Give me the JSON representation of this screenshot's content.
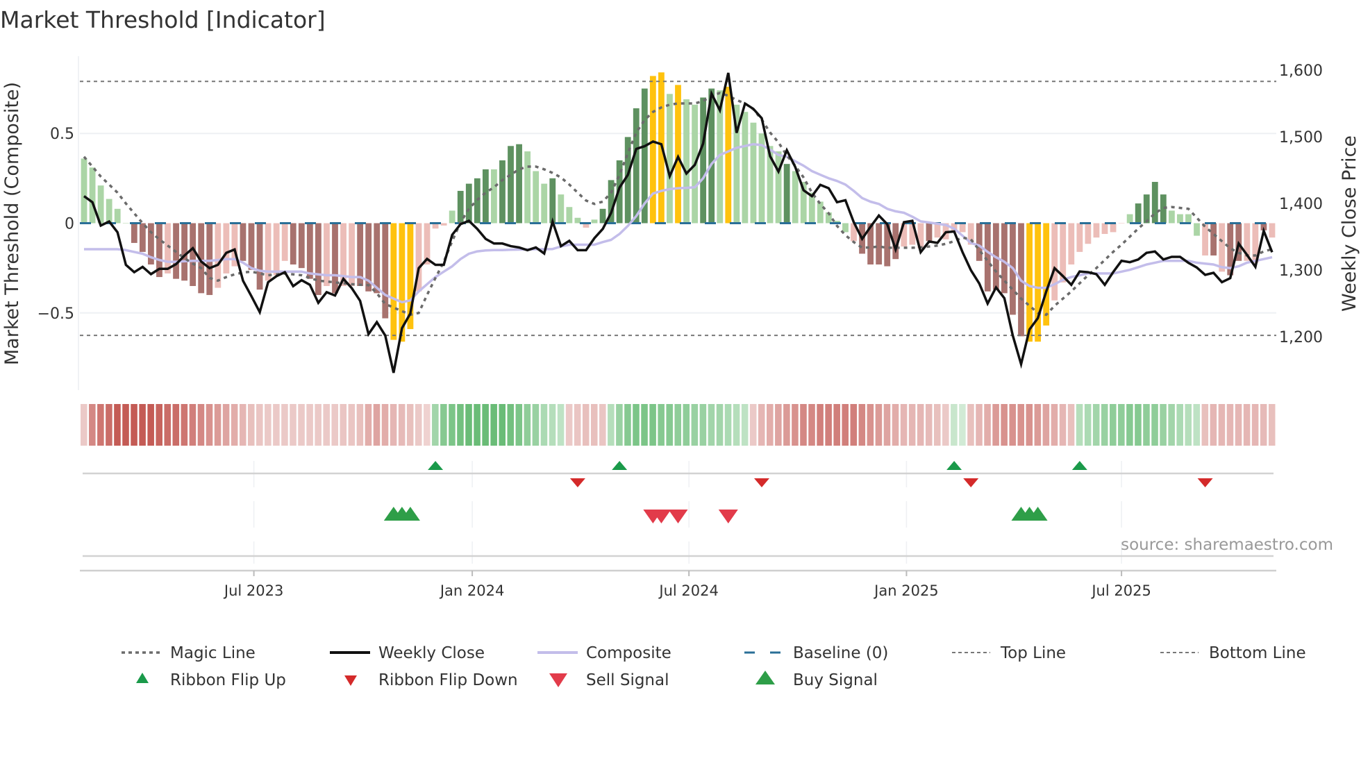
{
  "chart_data": {
    "type": "bar",
    "title": "Market Threshold [Indicator]",
    "ylabel": "Market Threshold (Composite)",
    "y2label": "Weekly Close Price",
    "xlabel": "",
    "ylim": [
      -0.93,
      0.93
    ],
    "y2lim": [
      1120,
      1621
    ],
    "yticks": [
      {
        "value": 0.5,
        "label": "0.5"
      },
      {
        "value": 0,
        "label": "0"
      },
      {
        "value": -0.5,
        "label": "−0.5"
      }
    ],
    "y2ticks": [
      {
        "value": 1600,
        "label": "1,600"
      },
      {
        "value": 1500,
        "label": "1,500"
      },
      {
        "value": 1400,
        "label": "1,400"
      },
      {
        "value": 1300,
        "label": "1,300"
      },
      {
        "value": 1200,
        "label": "1,200"
      }
    ],
    "xticks": [
      {
        "week": 20.8,
        "label": "Jul 2023"
      },
      {
        "week": 46.9,
        "label": "Jan 2024"
      },
      {
        "week": 72.8,
        "label": "Jul 2024"
      },
      {
        "week": 98.8,
        "label": "Jan 2025"
      },
      {
        "week": 124.5,
        "label": "Jul 2025"
      }
    ],
    "grid": true,
    "weeks": 143,
    "top_line": 0.79,
    "bottom_line": -0.625,
    "baseline": 0,
    "composite_bars": [
      0.36,
      0.31,
      0.21,
      0.135,
      0.08,
      0,
      -0.11,
      -0.16,
      -0.23,
      -0.3,
      -0.28,
      -0.31,
      -0.32,
      -0.35,
      -0.39,
      -0.4,
      -0.36,
      -0.28,
      -0.24,
      -0.21,
      -0.26,
      -0.37,
      -0.32,
      -0.29,
      -0.21,
      -0.23,
      -0.25,
      -0.31,
      -0.4,
      -0.35,
      -0.39,
      -0.35,
      -0.35,
      -0.35,
      -0.38,
      -0.39,
      -0.53,
      -0.65,
      -0.66,
      -0.59,
      -0.38,
      -0.23,
      -0.03,
      -0.013,
      0.07,
      0.18,
      0.22,
      0.25,
      0.3,
      0.3,
      0.35,
      0.43,
      0.44,
      0.4,
      0.29,
      0.22,
      0.25,
      0.16,
      0.09,
      0.03,
      -0.025,
      0.02,
      0.08,
      0.24,
      0.35,
      0.48,
      0.64,
      0.75,
      0.82,
      0.84,
      0.72,
      0.77,
      0.69,
      0.66,
      0.7,
      0.75,
      0.74,
      0.76,
      0.66,
      0.62,
      0.56,
      0.5,
      0.43,
      0.4,
      0.33,
      0.29,
      0.23,
      0.17,
      0.12,
      0.06,
      0.013,
      -0.05,
      -0.1,
      -0.17,
      -0.23,
      -0.23,
      -0.24,
      -0.2,
      -0.13,
      -0.12,
      -0.14,
      -0.1,
      -0.08,
      -0.09,
      -0.05,
      -0.05,
      -0.12,
      -0.21,
      -0.38,
      -0.37,
      -0.39,
      -0.51,
      -0.63,
      -0.66,
      -0.66,
      -0.57,
      -0.43,
      -0.33,
      -0.23,
      -0.16,
      -0.115,
      -0.08,
      -0.06,
      -0.05,
      0,
      0.05,
      0.11,
      0.16,
      0.23,
      0.16,
      0.07,
      0.05,
      0.05,
      -0.07,
      -0.18,
      -0.18,
      -0.27,
      -0.29,
      -0.21,
      -0.21,
      -0.22,
      -0.04,
      -0.08
    ],
    "bar_classes": "ggggggRRRRrRRRRRrrrRRRrrrRRRRrRrrRRRRYYYrrrrgGGGGgGGGgggGgggrgGGGGGGYYgYggGGgYggggggGgggggggrRRRRRrrrRrrrrrRRRRRRYYYrrrrrrrrrgGGGGggggrRrRRrrRrr",
    "bar_colors": {
      "G": "#5e9160",
      "g": "#abd5a6",
      "R": "#a8726e",
      "r": "#ecbdb8",
      "Y": "#ffc20e"
    },
    "weekly_close": [
      1411,
      1402,
      1367,
      1373,
      1357,
      1308,
      1297,
      1305,
      1294,
      1302,
      1302,
      1309,
      1322,
      1333,
      1313,
      1303,
      1308,
      1326,
      1331,
      1284,
      1261,
      1237,
      1282,
      1291,
      1297,
      1276,
      1285,
      1278,
      1251,
      1267,
      1262,
      1287,
      1273,
      1254,
      1204,
      1222,
      1202,
      1146,
      1213,
      1235,
      1303,
      1317,
      1308,
      1308,
      1353,
      1369,
      1374,
      1362,
      1347,
      1340,
      1340,
      1336,
      1334,
      1330,
      1334,
      1325,
      1373,
      1336,
      1344,
      1330,
      1330,
      1348,
      1362,
      1386,
      1424,
      1443,
      1482,
      1486,
      1493,
      1489,
      1441,
      1470,
      1445,
      1458,
      1490,
      1565,
      1540,
      1596,
      1506,
      1550,
      1542,
      1528,
      1471,
      1448,
      1480,
      1455,
      1420,
      1411,
      1428,
      1423,
      1402,
      1405,
      1372,
      1347,
      1365,
      1382,
      1369,
      1331,
      1372,
      1374,
      1327,
      1343,
      1341,
      1357,
      1358,
      1327,
      1300,
      1280,
      1250,
      1274,
      1258,
      1202,
      1159,
      1211,
      1228,
      1268,
      1303,
      1291,
      1278,
      1298,
      1297,
      1294,
      1278,
      1297,
      1314,
      1312,
      1316,
      1326,
      1328,
      1316,
      1320,
      1320,
      1311,
      1304,
      1293,
      1296,
      1282,
      1288,
      1340,
      1323,
      1305,
      1359,
      1327
    ],
    "magic_line": [
      0.37,
      0.315,
      0.26,
      0.215,
      0.17,
      0.11,
      0.055,
      0.0,
      -0.05,
      -0.09,
      -0.125,
      -0.16,
      -0.195,
      -0.225,
      -0.25,
      -0.305,
      -0.32,
      -0.3,
      -0.285,
      -0.275,
      -0.27,
      -0.28,
      -0.29,
      -0.285,
      -0.28,
      -0.285,
      -0.29,
      -0.305,
      -0.32,
      -0.325,
      -0.33,
      -0.335,
      -0.34,
      -0.343,
      -0.345,
      -0.39,
      -0.45,
      -0.47,
      -0.49,
      -0.51,
      -0.5,
      -0.4,
      -0.305,
      -0.215,
      -0.1,
      0.004,
      0.08,
      0.13,
      0.17,
      0.2,
      0.24,
      0.27,
      0.3,
      0.315,
      0.315,
      0.3,
      0.28,
      0.255,
      0.215,
      0.17,
      0.126,
      0.107,
      0.12,
      0.17,
      0.27,
      0.39,
      0.505,
      0.575,
      0.62,
      0.645,
      0.66,
      0.667,
      0.667,
      0.667,
      0.68,
      0.71,
      0.725,
      0.71,
      0.686,
      0.667,
      0.635,
      0.577,
      0.505,
      0.45,
      0.377,
      0.32,
      0.255,
      0.17,
      0.107,
      0.055,
      -0.015,
      -0.067,
      -0.105,
      -0.137,
      -0.135,
      -0.13,
      -0.137,
      -0.137,
      -0.137,
      -0.137,
      -0.135,
      -0.13,
      -0.125,
      -0.115,
      -0.1,
      -0.08,
      -0.09,
      -0.15,
      -0.21,
      -0.27,
      -0.32,
      -0.37,
      -0.42,
      -0.46,
      -0.5,
      -0.51,
      -0.46,
      -0.42,
      -0.38,
      -0.335,
      -0.29,
      -0.25,
      -0.205,
      -0.16,
      -0.12,
      -0.075,
      -0.03,
      0.01,
      0.055,
      0.085,
      0.09,
      0.085,
      0.08,
      0.03,
      -0.02,
      -0.06,
      -0.1,
      -0.14,
      -0.165,
      -0.18,
      -0.18,
      -0.157,
      -0.145
    ],
    "composite_line": [
      -0.145,
      -0.145,
      -0.145,
      -0.145,
      -0.145,
      -0.15,
      -0.16,
      -0.17,
      -0.19,
      -0.205,
      -0.215,
      -0.215,
      -0.212,
      -0.21,
      -0.21,
      -0.21,
      -0.205,
      -0.2,
      -0.2,
      -0.22,
      -0.25,
      -0.265,
      -0.27,
      -0.27,
      -0.27,
      -0.27,
      -0.27,
      -0.28,
      -0.285,
      -0.29,
      -0.29,
      -0.295,
      -0.3,
      -0.3,
      -0.32,
      -0.36,
      -0.4,
      -0.42,
      -0.44,
      -0.43,
      -0.38,
      -0.34,
      -0.3,
      -0.27,
      -0.24,
      -0.2,
      -0.17,
      -0.157,
      -0.152,
      -0.15,
      -0.15,
      -0.148,
      -0.147,
      -0.146,
      -0.145,
      -0.145,
      -0.144,
      -0.13,
      -0.12,
      -0.12,
      -0.12,
      -0.12,
      -0.105,
      -0.093,
      -0.06,
      -0.015,
      0.04,
      0.11,
      0.165,
      0.18,
      0.19,
      0.195,
      0.197,
      0.2,
      0.25,
      0.33,
      0.38,
      0.4,
      0.42,
      0.43,
      0.44,
      0.435,
      0.41,
      0.38,
      0.37,
      0.345,
      0.32,
      0.29,
      0.27,
      0.25,
      0.235,
      0.215,
      0.18,
      0.14,
      0.12,
      0.107,
      0.08,
      0.066,
      0.058,
      0.036,
      0.01,
      0.004,
      -0.003,
      -0.01,
      -0.03,
      -0.07,
      -0.11,
      -0.125,
      -0.16,
      -0.19,
      -0.215,
      -0.25,
      -0.32,
      -0.35,
      -0.36,
      -0.36,
      -0.34,
      -0.315,
      -0.3,
      -0.29,
      -0.28,
      -0.28,
      -0.28,
      -0.28,
      -0.27,
      -0.26,
      -0.245,
      -0.23,
      -0.22,
      -0.21,
      -0.21,
      -0.21,
      -0.21,
      -0.22,
      -0.225,
      -0.23,
      -0.245,
      -0.25,
      -0.24,
      -0.22,
      -0.21,
      -0.2,
      -0.19
    ],
    "ribbon": [
      -0.2,
      -0.55,
      -0.65,
      -0.7,
      -0.8,
      -0.8,
      -0.8,
      -0.8,
      -0.8,
      -0.75,
      -0.7,
      -0.7,
      -0.65,
      -0.6,
      -0.55,
      -0.5,
      -0.45,
      -0.4,
      -0.35,
      -0.3,
      -0.25,
      -0.22,
      -0.2,
      -0.2,
      -0.2,
      -0.2,
      -0.2,
      -0.2,
      -0.2,
      -0.2,
      -0.2,
      -0.22,
      -0.22,
      -0.25,
      -0.35,
      -0.4,
      -0.35,
      -0.3,
      -0.28,
      -0.25,
      -0.2,
      -0.15,
      0.4,
      0.55,
      0.6,
      0.65,
      0.7,
      0.7,
      0.7,
      0.7,
      0.7,
      0.65,
      0.6,
      0.5,
      0.45,
      0.35,
      0.3,
      0.25,
      -0.2,
      -0.22,
      -0.25,
      -0.25,
      -0.22,
      0.3,
      0.45,
      0.55,
      0.6,
      0.6,
      0.6,
      0.55,
      0.55,
      0.5,
      0.5,
      0.45,
      0.45,
      0.4,
      0.4,
      0.35,
      0.3,
      0.25,
      -0.2,
      -0.3,
      -0.35,
      -0.4,
      -0.45,
      -0.5,
      -0.55,
      -0.55,
      -0.6,
      -0.6,
      -0.6,
      -0.6,
      -0.6,
      -0.55,
      -0.5,
      -0.45,
      -0.4,
      -0.35,
      -0.3,
      -0.3,
      -0.3,
      -0.28,
      -0.25,
      -0.2,
      0.2,
      0.15,
      -0.25,
      -0.3,
      -0.35,
      -0.45,
      -0.5,
      -0.5,
      -0.5,
      -0.5,
      -0.45,
      -0.4,
      -0.35,
      -0.3,
      -0.25,
      0.3,
      0.35,
      0.4,
      0.45,
      0.5,
      0.5,
      0.55,
      0.55,
      0.5,
      0.5,
      0.45,
      0.4,
      0.35,
      0.3,
      0.25,
      -0.25,
      -0.3,
      -0.3,
      -0.3,
      -0.3,
      -0.3,
      -0.3,
      -0.28,
      -0.25
    ],
    "signals": {
      "ribbon_flip_up": [
        42,
        64,
        104,
        119
      ],
      "ribbon_flip_down": [
        59,
        81,
        106,
        134
      ],
      "sell": [
        68,
        69,
        71,
        77
      ],
      "buy": [
        37,
        38,
        39,
        112,
        113,
        114
      ]
    },
    "colors": {
      "weekly_close": "#111111",
      "composite": "#c3bdea",
      "magic": "#6b6b6b",
      "baseline": "#2a6f97",
      "ref_lines": "#777777",
      "ribbon_red": "#c0504a",
      "ribbon_green": "#4caf5c",
      "flip_up": "#1a9a4a",
      "flip_down": "#d42a2a",
      "sell": "#e23b4a",
      "buy": "#2e9e48"
    },
    "legend": [
      {
        "label": "Magic Line",
        "symbol": "dotted-line"
      },
      {
        "label": "Weekly Close",
        "symbol": "solid-line"
      },
      {
        "label": "Composite",
        "symbol": "lavender-line"
      },
      {
        "label": "Baseline (0)",
        "symbol": "dashed-line"
      },
      {
        "label": "Top Line",
        "symbol": "thin-dotted-line"
      },
      {
        "label": "Bottom Line",
        "symbol": "thin-dotted-line"
      },
      {
        "label": "Ribbon Flip Up",
        "symbol": "small-up-triangle"
      },
      {
        "label": "Ribbon Flip Down",
        "symbol": "small-down-triangle"
      },
      {
        "label": "Sell Signal",
        "symbol": "down-triangle"
      },
      {
        "label": "Buy Signal",
        "symbol": "up-triangle"
      }
    ],
    "legend_placement": "bottom",
    "source": "source: sharemaestro.com"
  }
}
